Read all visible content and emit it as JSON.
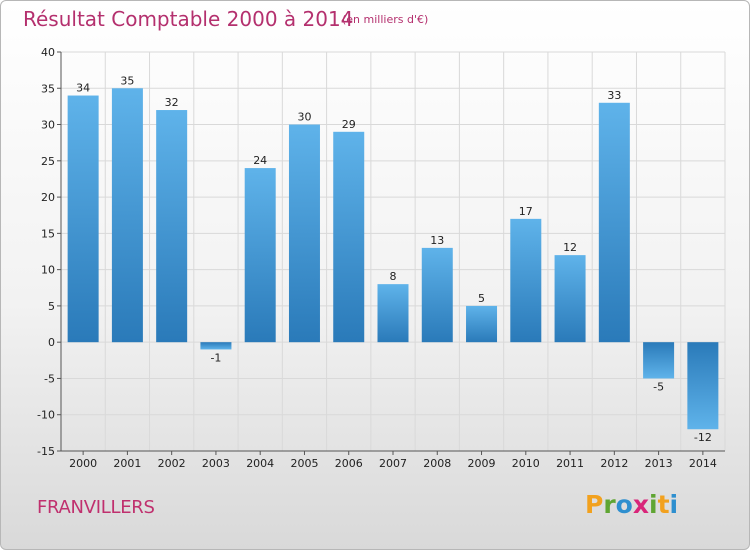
{
  "header": {
    "title": "Résultat Comptable 2000 à 2014",
    "subtitle": "(en milliers d'€)"
  },
  "footer": {
    "commune": "FRANVILLERS",
    "logo_letters": [
      "P",
      "r",
      "o",
      "x",
      "i",
      "t",
      "i"
    ]
  },
  "colors": {
    "title": "#b4306e",
    "bar_top": "#5fb3ea",
    "bar_bottom": "#2a7ab9",
    "grid": "#d9d9d9",
    "axis": "#555555"
  },
  "chart_data": {
    "type": "bar",
    "categories": [
      "2000",
      "2001",
      "2002",
      "2003",
      "2004",
      "2005",
      "2006",
      "2007",
      "2008",
      "2009",
      "2010",
      "2011",
      "2012",
      "2013",
      "2014"
    ],
    "values": [
      34,
      35,
      32,
      -1,
      24,
      30,
      29,
      8,
      13,
      5,
      17,
      12,
      33,
      -5,
      -12
    ],
    "title": "Résultat Comptable 2000 à 2014",
    "subtitle": "(en milliers d'€)",
    "xlabel": "",
    "ylabel": "",
    "ylim": [
      -15,
      40
    ],
    "yticks": [
      -15,
      -10,
      -5,
      0,
      5,
      10,
      15,
      20,
      25,
      30,
      35,
      40
    ],
    "grid": true,
    "legend": "none"
  }
}
